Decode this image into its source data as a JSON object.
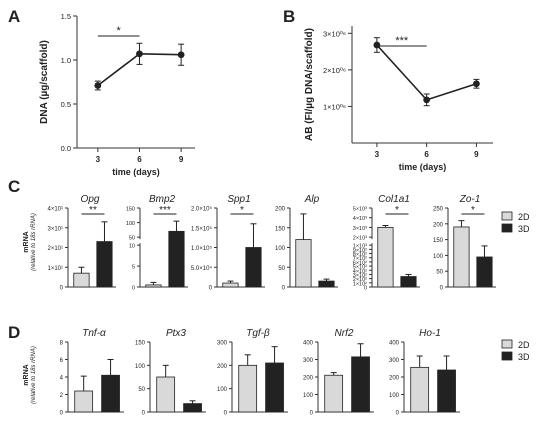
{
  "panel_labels": {
    "A": "A",
    "B": "B",
    "C": "C",
    "D": "D"
  },
  "colors": {
    "twoD": "#d9d9d9",
    "threeD": "#222222",
    "axis": "#333333",
    "line": "#222222"
  },
  "panel_c_legend": {
    "twoD": "2D",
    "threeD": "3D"
  },
  "panel_d_legend": {
    "twoD": "2D",
    "threeD": "3D"
  },
  "panel_c_ylabel": {
    "line1": "mRNA",
    "line2": "(relative to 18s rRNA)"
  },
  "panel_d_ylabel": {
    "line1": "mRNA",
    "line2": "(relative to 18s rRNA)"
  },
  "chart_data": [
    {
      "id": "A",
      "type": "line",
      "x": [
        3,
        6,
        9
      ],
      "y": [
        0.71,
        1.07,
        1.06
      ],
      "err": [
        0.05,
        0.12,
        0.12
      ],
      "xlabel": "time (days)",
      "ylabel": "DNA (µg/scaffold)",
      "xticks": [
        "3",
        "6",
        "9"
      ],
      "yticks": [
        "0.0",
        "0.5",
        "1.0",
        "1.5"
      ],
      "ylim": [
        0,
        1.5
      ],
      "significance": [
        {
          "from": 3,
          "to": 6,
          "label": "*"
        }
      ]
    },
    {
      "id": "B",
      "type": "line",
      "x": [
        3,
        6,
        9
      ],
      "y": [
        2.68,
        1.18,
        1.62
      ],
      "err": [
        0.2,
        0.16,
        0.12
      ],
      "xlabel": "time (days)",
      "ylabel": "AB (FI/µg DNA/scaffold)",
      "xticks": [
        "3",
        "6",
        "9"
      ],
      "yticks": [
        "1×10⁰⁶",
        "2×10⁰⁶",
        "3×10⁰⁶"
      ],
      "ylim": [
        0,
        3.2
      ],
      "significance": [
        {
          "from": 3,
          "to": 6,
          "label": "***"
        }
      ]
    },
    {
      "id": "C",
      "type": "bar",
      "series_names": [
        "2D",
        "3D"
      ],
      "subplots": [
        {
          "gene": "Opg",
          "values": [
            0.7,
            2.3
          ],
          "err": [
            0.3,
            1.0
          ],
          "yticks": [
            "0",
            "1×10¹",
            "2×10¹",
            "3×10¹",
            "4×10¹"
          ],
          "ylim": [
            0,
            4
          ],
          "sig": "**"
        },
        {
          "gene": "Bmp2",
          "values": [
            0.5,
            70
          ],
          "err": [
            0.6,
            35
          ],
          "yticks_top": [
            "50",
            "100",
            "150"
          ],
          "yticks_bottom": [
            "0",
            "5",
            "10"
          ],
          "broken_axis": true,
          "sig": "***"
        },
        {
          "gene": "Spp1",
          "values": [
            0.1,
            1.0
          ],
          "err": [
            0.05,
            0.6
          ],
          "yticks": [
            "0",
            "5.0×10⁴",
            "1.0×10⁵",
            "1.5×10⁵",
            "2.0×10⁵"
          ],
          "ylim": [
            0,
            2
          ],
          "sig": "*"
        },
        {
          "gene": "Alp",
          "values": [
            120,
            15
          ],
          "err": [
            65,
            5
          ],
          "yticks": [
            "0",
            "50",
            "100",
            "150",
            "200"
          ],
          "ylim": [
            0,
            200
          ],
          "sig": ""
        },
        {
          "gene": "Col1a1",
          "values": [
            3.0,
            0.25
          ],
          "err": [
            0.2,
            0.05
          ],
          "yticks_top": [
            "2×10³",
            "3×10³",
            "4×10³",
            "5×10³"
          ],
          "yticks_bottom": [
            "0",
            "1×10²",
            "2×10²",
            "3×10²",
            "4×10²",
            "5×10²",
            "6×10²",
            "7×10²",
            "8×10²",
            "9×10²",
            "1×10³"
          ],
          "broken_axis": true,
          "sig": "*"
        },
        {
          "gene": "Zo-1",
          "values": [
            190,
            95
          ],
          "err": [
            20,
            35
          ],
          "yticks": [
            "0",
            "50",
            "100",
            "150",
            "200",
            "250"
          ],
          "ylim": [
            0,
            250
          ],
          "sig": "*"
        }
      ]
    },
    {
      "id": "D",
      "type": "bar",
      "series_names": [
        "2D",
        "3D"
      ],
      "subplots": [
        {
          "gene": "Tnf-α",
          "values": [
            2.4,
            4.2
          ],
          "err": [
            1.7,
            1.8
          ],
          "yticks": [
            "0",
            "2",
            "4",
            "6",
            "8"
          ],
          "ylim": [
            0,
            8
          ]
        },
        {
          "gene": "Ptx3",
          "values": [
            75,
            18
          ],
          "err": [
            25,
            6
          ],
          "yticks": [
            "0",
            "50",
            "100",
            "150"
          ],
          "ylim": [
            0,
            150
          ]
        },
        {
          "gene": "Tgf-β",
          "values": [
            200,
            210
          ],
          "err": [
            45,
            70
          ],
          "yticks": [
            "0",
            "100",
            "200",
            "300"
          ],
          "ylim": [
            0,
            300
          ]
        },
        {
          "gene": "Nrf2",
          "values": [
            210,
            315
          ],
          "err": [
            15,
            75
          ],
          "yticks": [
            "0",
            "100",
            "200",
            "300",
            "400"
          ],
          "ylim": [
            0,
            400
          ]
        },
        {
          "gene": "Ho-1",
          "values": [
            255,
            240
          ],
          "err": [
            65,
            80
          ],
          "yticks": [
            "0",
            "100",
            "200",
            "300",
            "400"
          ],
          "ylim": [
            0,
            400
          ]
        }
      ]
    }
  ]
}
